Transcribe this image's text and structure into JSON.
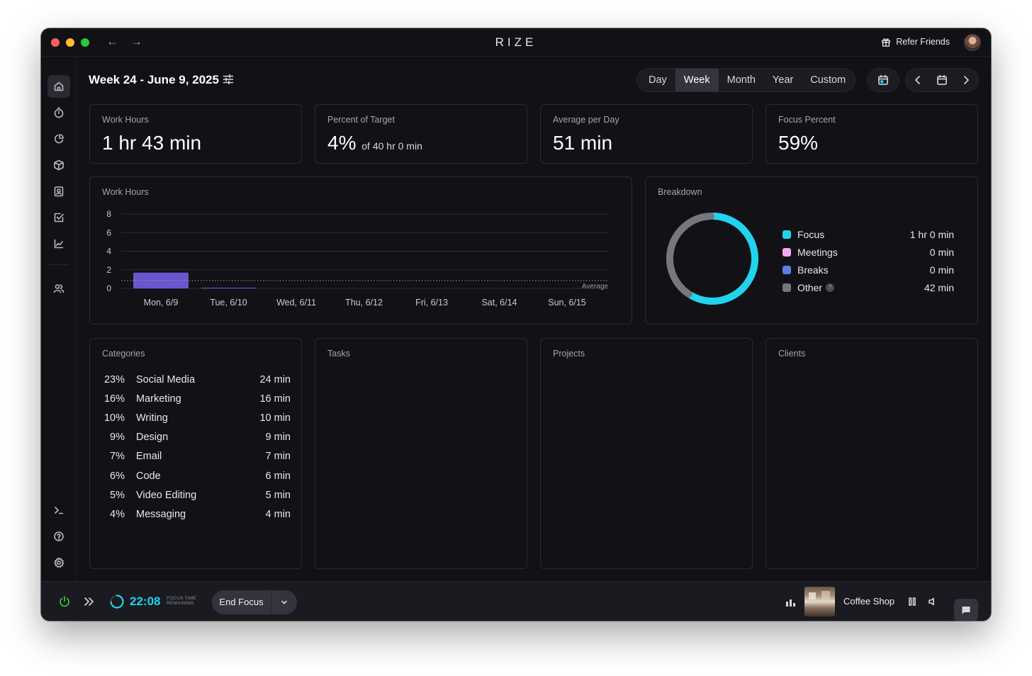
{
  "app": {
    "title": "RIZE",
    "refer_label": "Refer Friends"
  },
  "header": {
    "title": "Week 24 - June 9, 2025",
    "ranges": [
      "Day",
      "Week",
      "Month",
      "Year",
      "Custom"
    ],
    "active_range": "Week"
  },
  "stats": [
    {
      "label": "Work Hours",
      "value": "1 hr 43 min",
      "sub": ""
    },
    {
      "label": "Percent of Target",
      "value": "4%",
      "sub": "of 40 hr 0 min"
    },
    {
      "label": "Average per Day",
      "value": "51 min",
      "sub": ""
    },
    {
      "label": "Focus Percent",
      "value": "59%",
      "sub": ""
    }
  ],
  "work_hours_chart": {
    "label": "Work Hours",
    "average_label": "Average"
  },
  "chart_data": {
    "type": "bar",
    "categories": [
      "Mon, 6/9",
      "Tue, 6/10",
      "Wed, 6/11",
      "Thu, 6/12",
      "Fri, 6/13",
      "Sat, 6/14",
      "Sun, 6/15"
    ],
    "values": [
      1.7,
      0.03,
      0,
      0,
      0,
      0,
      0
    ],
    "yticks": [
      0,
      2,
      4,
      6,
      8
    ],
    "ylim": [
      0,
      8
    ],
    "average": 0.85,
    "title": "Work Hours",
    "xlabel": "",
    "ylabel": "",
    "bar_color": "#6b55cf",
    "grid": true
  },
  "breakdown": {
    "label": "Breakdown",
    "items": [
      {
        "name": "Focus",
        "value": "1 hr 0 min",
        "minutes": 60,
        "color": "#22d3ee"
      },
      {
        "name": "Meetings",
        "value": "0 min",
        "minutes": 0,
        "color": "#f0a8f0"
      },
      {
        "name": "Breaks",
        "value": "0 min",
        "minutes": 0,
        "color": "#5b7fe6"
      },
      {
        "name": "Other",
        "value": "42 min",
        "minutes": 42,
        "color": "#76767e",
        "has_help": true
      }
    ]
  },
  "categories": {
    "label": "Categories",
    "items": [
      {
        "pct": "23%",
        "name": "Social Media",
        "time": "24 min"
      },
      {
        "pct": "16%",
        "name": "Marketing",
        "time": "16 min"
      },
      {
        "pct": "10%",
        "name": "Writing",
        "time": "10 min"
      },
      {
        "pct": "9%",
        "name": "Design",
        "time": "9 min"
      },
      {
        "pct": "7%",
        "name": "Email",
        "time": "7 min"
      },
      {
        "pct": "6%",
        "name": "Code",
        "time": "6 min"
      },
      {
        "pct": "5%",
        "name": "Video Editing",
        "time": "5 min"
      },
      {
        "pct": "4%",
        "name": "Messaging",
        "time": "4 min"
      }
    ]
  },
  "panels": {
    "tasks": "Tasks",
    "projects": "Projects",
    "clients": "Clients"
  },
  "bottom": {
    "timer": "22:08",
    "timer_caption_1": "FOCUS TIME",
    "timer_caption_2": "REMAINING",
    "timer_progress": 0.74,
    "end_focus": "End Focus",
    "track": "Coffee Shop"
  },
  "colors": {
    "accent": "#22d3ee",
    "power": "#3ecf4a"
  }
}
